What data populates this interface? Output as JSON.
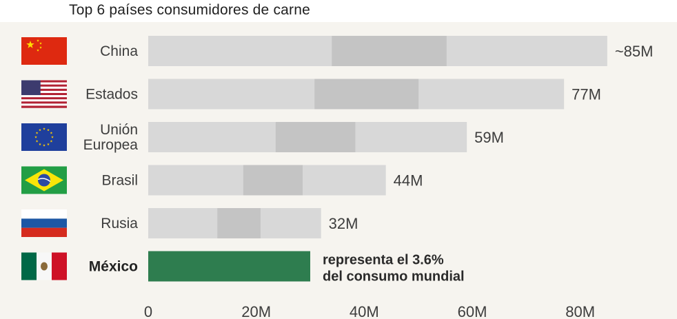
{
  "title": "Top 6 países consumidores de carne",
  "chart_data": {
    "type": "bar",
    "orientation": "horizontal",
    "title": "Top 6 países consumidores de carne",
    "categories": [
      "China",
      "Estados",
      "Unión Europea",
      "Brasil",
      "Rusia",
      "México"
    ],
    "category_lines": [
      [
        "China"
      ],
      [
        "Estados"
      ],
      [
        "Unión",
        "Europea"
      ],
      [
        "Brasil"
      ],
      [
        "Rusia"
      ],
      [
        "México"
      ]
    ],
    "values": [
      85,
      77,
      59,
      44,
      32,
      30
    ],
    "data_labels": [
      "~85M",
      "77M",
      "59M",
      "44M",
      "32M",
      ""
    ],
    "annotation": [
      "representa el 3.6%",
      "del consumo mundial"
    ],
    "highlight_category": "México",
    "flags": [
      "china-flag-icon",
      "usa-flag-icon",
      "eu-flag-icon",
      "brazil-flag-icon",
      "russia-flag-icon",
      "mexico-flag-icon"
    ],
    "x_ticks": [
      0,
      20,
      40,
      60,
      80
    ],
    "x_tick_labels": [
      "0",
      "20M",
      "40M",
      "60M",
      "80M"
    ],
    "xlim": [
      0,
      96
    ],
    "colors": {
      "bar_light": "#d8d8d8",
      "bar_dark": "#c4c4c4",
      "highlight": "#2e7d4f",
      "text": "#3d3d3d",
      "axis": "#9a9a9a"
    }
  }
}
